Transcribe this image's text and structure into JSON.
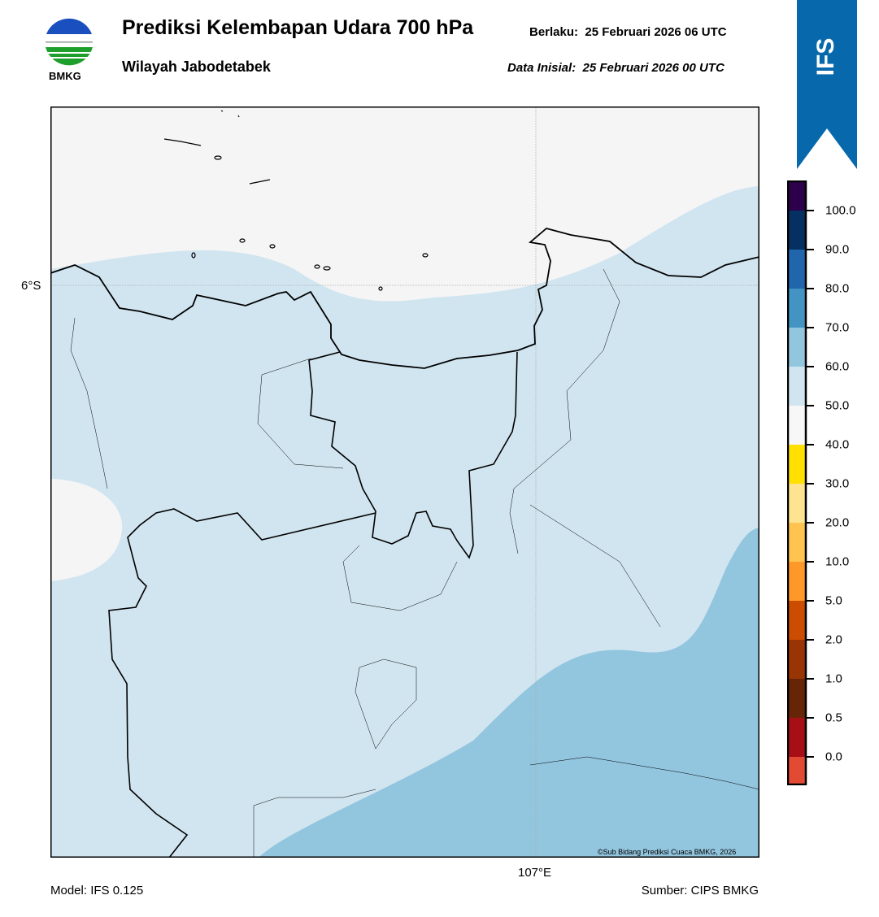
{
  "header": {
    "title": "Prediksi Kelembapan Udara 700 hPa",
    "subtitle": "Wilayah Jabodetabek",
    "valid": "Berlaku:  25 Februari 2026 06 UTC",
    "initial": "Data Inisial:  25 Februari 2026 00 UTC",
    "logo_text": "BMKG",
    "model_badge": "IFS"
  },
  "map": {
    "lon_label": "107°E",
    "lat_label": "6°S",
    "credit": "©Sub Bidang Prediksi Cuaca BMKG, 2026",
    "colors": {
      "sea_low": "#f5f5f5",
      "rh_50_60": "#d1e5f0",
      "rh_60_70": "#92c5de"
    }
  },
  "colorbar": {
    "colors": [
      "#2d004b",
      "#053061",
      "#2166ac",
      "#4393c3",
      "#92c5de",
      "#d1e5f0",
      "#f7f7f7",
      "#ffe000",
      "#fee391",
      "#fec44f",
      "#fe9929",
      "#cc4c02",
      "#993404",
      "#662506",
      "#a50f15",
      "#e34a33"
    ],
    "labels": [
      "100.0",
      "90.0",
      "80.0",
      "70.0",
      "60.0",
      "50.0",
      "40.0",
      "30.0",
      "20.0",
      "10.0",
      "5.0",
      "2.0",
      "1.0",
      "0.5",
      "0.0"
    ]
  },
  "footer": {
    "model": "Model: IFS 0.125",
    "source": "Sumber: CIPS BMKG"
  }
}
